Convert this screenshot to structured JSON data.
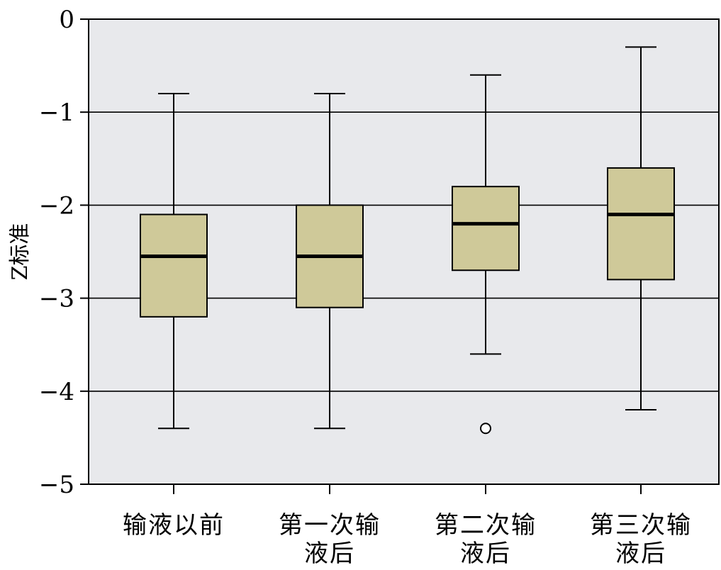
{
  "chart_data": {
    "type": "box",
    "ylabel": "Z标准",
    "xlabel": "",
    "ylim": [
      -5,
      0
    ],
    "yticks": [
      0,
      -1,
      -2,
      -3,
      -4,
      -5
    ],
    "ytick_labels": [
      "0",
      "−1",
      "−2",
      "−3",
      "−4",
      "−5"
    ],
    "grid": "horizontal",
    "colors": {
      "plot_bg": "#e8e9ec",
      "box_fill": "#cfc999",
      "line": "#000000"
    },
    "categories": [
      {
        "lines": [
          "输液以前"
        ]
      },
      {
        "lines": [
          "第一次输",
          "液后"
        ]
      },
      {
        "lines": [
          "第二次输",
          "液后"
        ]
      },
      {
        "lines": [
          "第三次输",
          "液后"
        ]
      }
    ],
    "boxes": [
      {
        "whisker_low": -4.4,
        "q1": -3.2,
        "median": -2.55,
        "q3": -2.1,
        "whisker_high": -0.8,
        "outliers": []
      },
      {
        "whisker_low": -4.4,
        "q1": -3.1,
        "median": -2.55,
        "q3": -2.0,
        "whisker_high": -0.8,
        "outliers": []
      },
      {
        "whisker_low": -3.6,
        "q1": -2.7,
        "median": -2.2,
        "q3": -1.8,
        "whisker_high": -0.6,
        "outliers": [
          -4.4
        ]
      },
      {
        "whisker_low": -4.2,
        "q1": -2.8,
        "median": -2.1,
        "q3": -1.6,
        "whisker_high": -0.3,
        "outliers": []
      }
    ]
  }
}
